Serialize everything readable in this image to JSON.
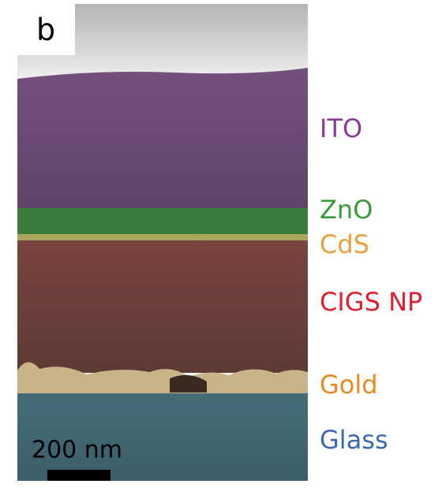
{
  "panel_label": "b",
  "scale_label": "200 nm",
  "layers": [
    {
      "label": "ITO"
    },
    {
      "label": "ZnO"
    },
    {
      "label": "CdS"
    },
    {
      "label": "CIGS NP"
    },
    {
      "label": "Gold"
    },
    {
      "label": "Glass"
    }
  ]
}
